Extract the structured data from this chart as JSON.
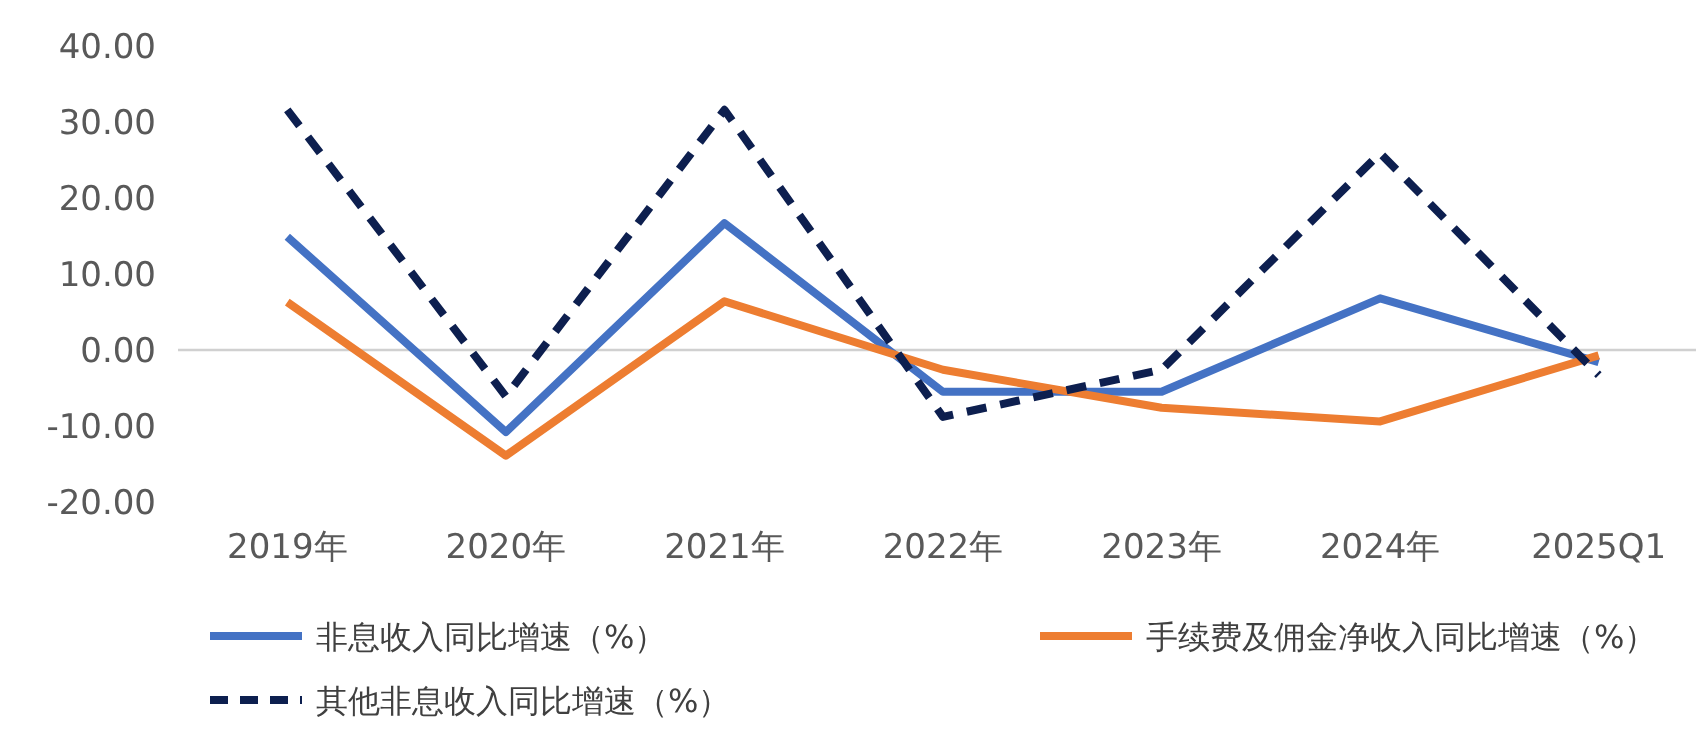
{
  "chart_data": {
    "type": "line",
    "categories": [
      "2019年",
      "2020年",
      "2021年",
      "2022年",
      "2023年",
      "2024年",
      "2025Q1"
    ],
    "series": [
      {
        "name": "非息收入同比增速（%）",
        "color": "#4472c4",
        "line_style": "solid",
        "values": [
          14.9,
          -10.8,
          16.7,
          -5.5,
          -5.5,
          6.8,
          -1.6
        ]
      },
      {
        "name": "手续费及佣金净收入同比增速（%）",
        "color": "#ed7d31",
        "line_style": "solid",
        "values": [
          6.3,
          -13.9,
          6.4,
          -2.6,
          -7.6,
          -9.4,
          -0.7
        ]
      },
      {
        "name": "其他非息收入同比增速（%）",
        "color": "#0d1f4f",
        "line_style": "dashed",
        "values": [
          31.6,
          -6.1,
          31.6,
          -8.8,
          -2.6,
          25.9,
          -3.3
        ]
      }
    ],
    "ylim": [
      -20,
      40
    ],
    "yticks": [
      {
        "value": -20,
        "label": "-20.00"
      },
      {
        "value": -10,
        "label": "-10.00"
      },
      {
        "value": 0,
        "label": "0.00"
      },
      {
        "value": 10,
        "label": "10.00"
      },
      {
        "value": 20,
        "label": "20.00"
      },
      {
        "value": 30,
        "label": "30.00"
      },
      {
        "value": 40,
        "label": "40.00"
      }
    ],
    "ref_lines": [
      {
        "axis": "y",
        "value": 0,
        "color": "#d0d0d0"
      }
    ],
    "grid": false,
    "legend": "bottom",
    "marker": "none"
  }
}
